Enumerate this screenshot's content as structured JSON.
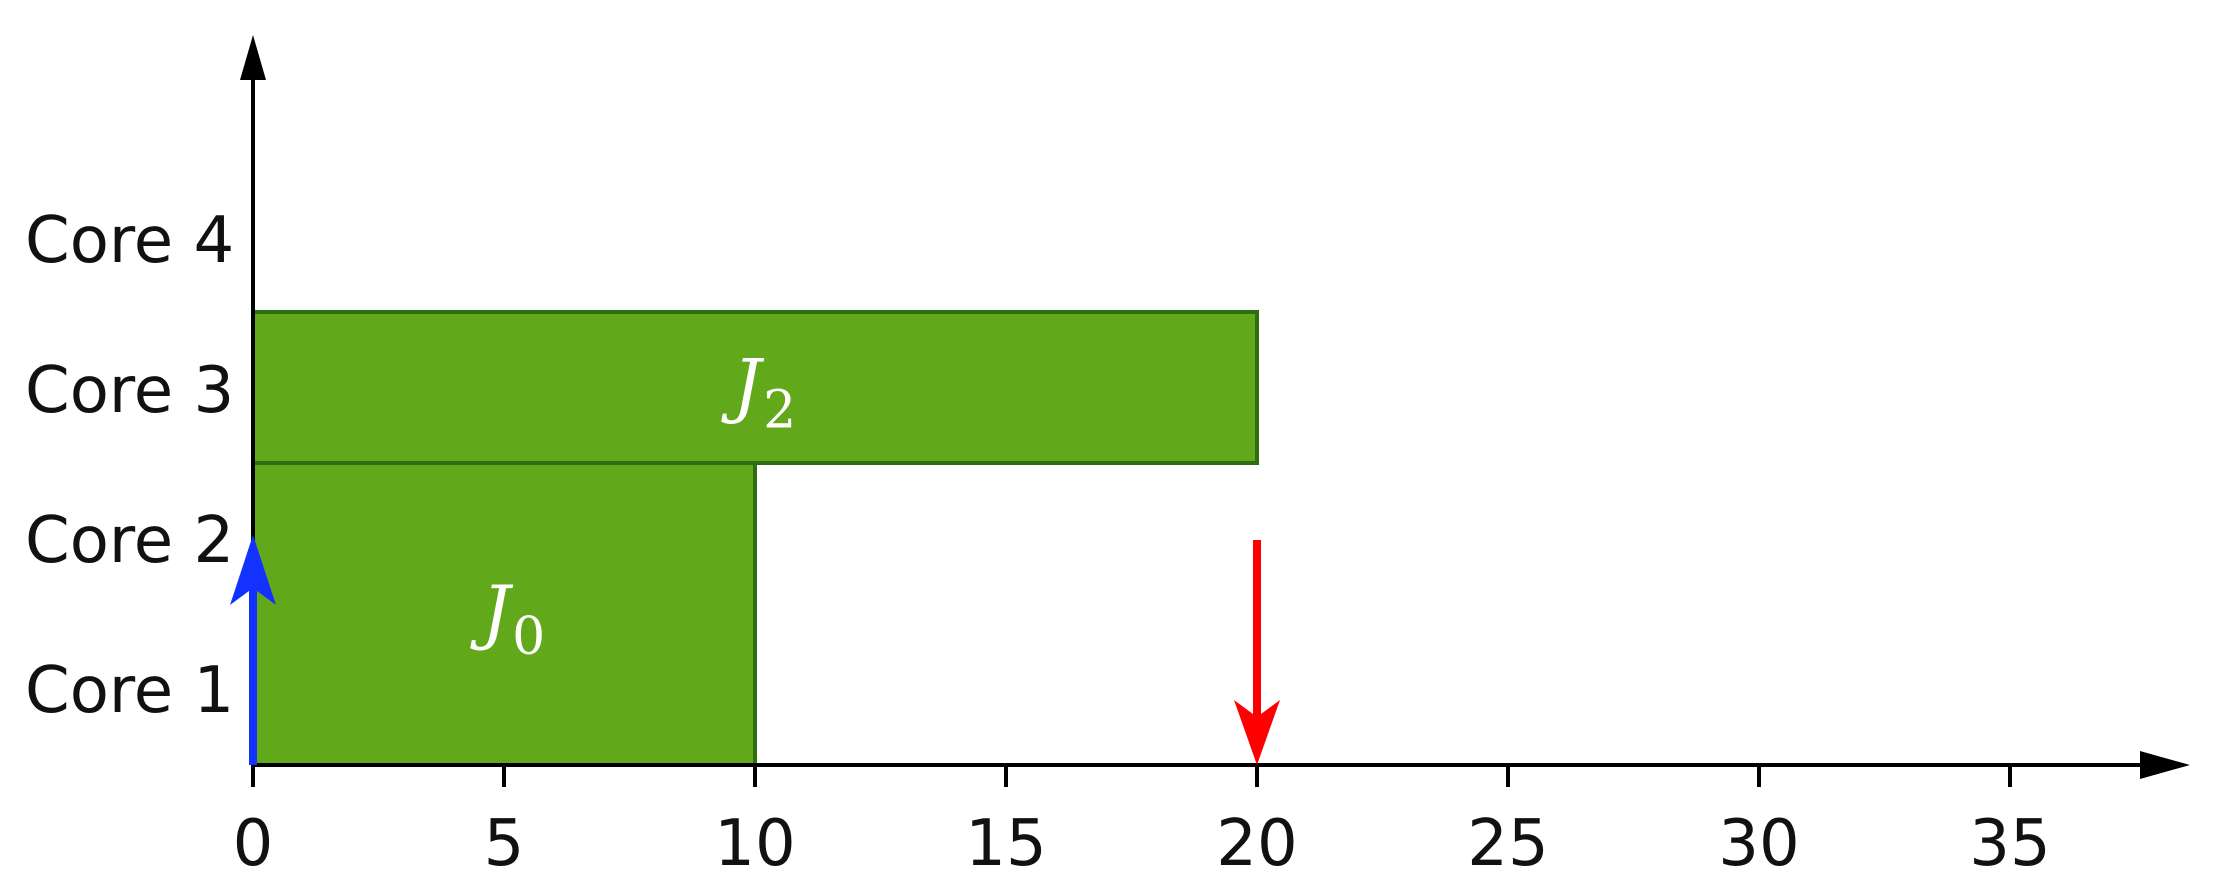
{
  "diagram": {
    "cores": [
      "Core 1",
      "Core 2",
      "Core 3",
      "Core 4"
    ],
    "time_ticks": [
      0,
      5,
      10,
      15,
      20,
      25,
      30,
      35
    ],
    "jobs": [
      {
        "name": "J",
        "subscript": "0",
        "start": 0,
        "end": 10,
        "cores": [
          1,
          2
        ]
      },
      {
        "name": "J",
        "subscript": "2",
        "start": 0,
        "end": 20,
        "cores": [
          3
        ]
      }
    ],
    "release_arrow": {
      "time": 0,
      "color": "#1432ff"
    },
    "deadline_arrow": {
      "time": 20,
      "color": "#ff0000"
    },
    "colors": {
      "job_fill": "#62a81b",
      "job_stroke": "#2f6e10",
      "axis": "#000000"
    }
  }
}
